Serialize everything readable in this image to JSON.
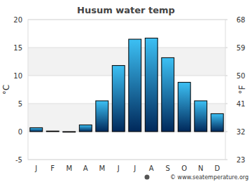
{
  "chart_data": {
    "type": "bar",
    "title": "Husum water temp",
    "categories": [
      "J",
      "F",
      "M",
      "A",
      "M",
      "J",
      "J",
      "A",
      "S",
      "O",
      "N",
      "D"
    ],
    "values": [
      0.7,
      0.1,
      -0.1,
      1.2,
      5.5,
      11.8,
      16.5,
      16.7,
      13.2,
      8.8,
      5.5,
      3.2
    ],
    "ylim": [
      -5,
      20
    ],
    "yticks": [
      -5,
      0,
      5,
      10,
      15,
      20
    ],
    "y2lim": [
      23,
      68
    ],
    "y2ticks": [
      23,
      32,
      41,
      50,
      59,
      68
    ],
    "y_label": "°C",
    "y2_label": "°F",
    "source": "© www.seatemperature.org",
    "grid": true
  }
}
